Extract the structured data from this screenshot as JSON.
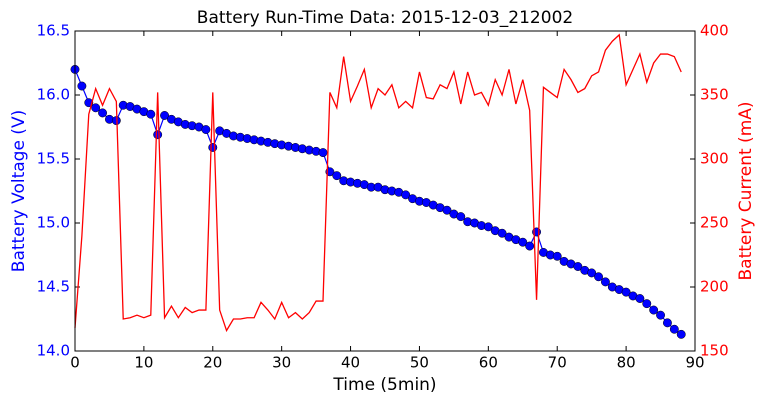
{
  "chart_data": {
    "type": "line",
    "title": "Battery Run-Time Data: 2015-12-03_212002",
    "xlabel": "Time (5min)",
    "ylabel": "Battery Voltage (V)",
    "y2label": "Battery Current (mA)",
    "x": [
      0,
      1,
      2,
      3,
      4,
      5,
      6,
      7,
      8,
      9,
      10,
      11,
      12,
      13,
      14,
      15,
      16,
      17,
      18,
      19,
      20,
      21,
      22,
      23,
      24,
      25,
      26,
      27,
      28,
      29,
      30,
      31,
      32,
      33,
      34,
      35,
      36,
      37,
      38,
      39,
      40,
      41,
      42,
      43,
      44,
      45,
      46,
      47,
      48,
      49,
      50,
      51,
      52,
      53,
      54,
      55,
      56,
      57,
      58,
      59,
      60,
      61,
      62,
      63,
      64,
      65,
      66,
      67,
      68,
      69,
      70,
      71,
      72,
      73,
      74,
      75,
      76,
      77,
      78,
      79,
      80,
      81,
      82,
      83,
      84,
      85,
      86,
      87,
      88
    ],
    "series": [
      {
        "color": "#0000ff",
        "marker": "circle",
        "axis": "y",
        "values": [
          16.2,
          16.07,
          15.94,
          15.9,
          15.86,
          15.81,
          15.8,
          15.92,
          15.91,
          15.89,
          15.87,
          15.85,
          15.69,
          15.84,
          15.81,
          15.79,
          15.77,
          15.76,
          15.75,
          15.73,
          15.59,
          15.72,
          15.7,
          15.68,
          15.67,
          15.66,
          15.65,
          15.64,
          15.63,
          15.62,
          15.61,
          15.6,
          15.59,
          15.58,
          15.57,
          15.56,
          15.55,
          15.4,
          15.37,
          15.33,
          15.32,
          15.31,
          15.3,
          15.28,
          15.28,
          15.26,
          15.25,
          15.24,
          15.22,
          15.19,
          15.17,
          15.16,
          15.14,
          15.12,
          15.1,
          15.07,
          15.05,
          15.01,
          15.0,
          14.98,
          14.97,
          14.94,
          14.92,
          14.89,
          14.87,
          14.85,
          14.82,
          14.93,
          14.77,
          14.75,
          14.74,
          14.7,
          14.68,
          14.66,
          14.63,
          14.61,
          14.58,
          14.54,
          14.5,
          14.48,
          14.46,
          14.43,
          14.41,
          14.37,
          14.32,
          14.28,
          14.22,
          14.17,
          14.13
        ]
      },
      {
        "color": "#ff0000",
        "axis": "y2",
        "values": [
          168,
          240,
          335,
          355,
          342,
          355,
          345,
          175,
          176,
          178,
          176,
          178,
          352,
          176,
          185,
          176,
          184,
          180,
          182,
          182,
          352,
          182,
          166,
          175,
          175,
          176,
          176,
          188,
          182,
          175,
          188,
          176,
          180,
          175,
          180,
          189,
          189,
          352,
          340,
          380,
          345,
          357,
          370,
          340,
          355,
          350,
          358,
          340,
          345,
          340,
          368,
          348,
          347,
          358,
          355,
          368,
          343,
          368,
          350,
          352,
          342,
          362,
          350,
          370,
          343,
          362,
          338,
          190,
          356,
          352,
          348,
          370,
          362,
          352,
          355,
          365,
          368,
          385,
          392,
          397,
          358,
          370,
          382,
          360,
          375,
          382,
          382,
          380,
          368
        ]
      }
    ],
    "xlim": [
      0,
      90
    ],
    "xticks": [
      0,
      10,
      20,
      30,
      40,
      50,
      60,
      70,
      80,
      90
    ],
    "ylim": [
      14,
      16.5
    ],
    "yticks": [
      {
        "value": 14,
        "label": "14.0"
      },
      14.5,
      {
        "value": 15,
        "label": "15.0"
      },
      15.5,
      {
        "value": 16,
        "label": "16.0"
      },
      16.5
    ],
    "y2lim": [
      150,
      400
    ],
    "y2ticks": [
      150,
      200,
      250,
      300,
      350,
      400
    ]
  }
}
